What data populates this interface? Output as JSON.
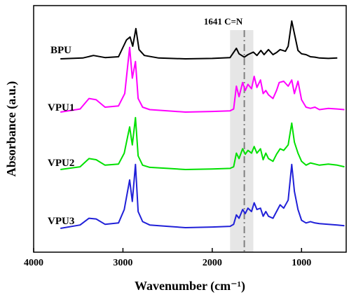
{
  "chart_data": {
    "type": "line",
    "xlabel": "Wavenumber (cm⁻¹)",
    "ylabel": "Absorbance (a.u.)",
    "xlim": [
      4000,
      500
    ],
    "x_reversed": true,
    "xticks": [
      4000,
      3000,
      2000,
      1000
    ],
    "grid": false,
    "legend": "inline labels left of each trace",
    "highlight_band": {
      "from": 1800,
      "to": 1540,
      "color": "#e6e6e6"
    },
    "annotation": {
      "label": "1641 C=N",
      "x": 1641,
      "line_style": "dash-dot",
      "color": "#808080"
    },
    "series": [
      {
        "name": "BPU",
        "color": "#000000",
        "points": [
          [
            3700,
            0.0
          ],
          [
            3450,
            0.02
          ],
          [
            3330,
            0.08
          ],
          [
            3200,
            0.03
          ],
          [
            3050,
            0.05
          ],
          [
            2960,
            0.45
          ],
          [
            2920,
            0.52
          ],
          [
            2890,
            0.3
          ],
          [
            2855,
            0.72
          ],
          [
            2820,
            0.22
          ],
          [
            2760,
            0.08
          ],
          [
            2600,
            0.02
          ],
          [
            2300,
            0.0
          ],
          [
            2000,
            0.01
          ],
          [
            1800,
            0.03
          ],
          [
            1730,
            0.25
          ],
          [
            1700,
            0.12
          ],
          [
            1640,
            0.04
          ],
          [
            1600,
            0.1
          ],
          [
            1540,
            0.16
          ],
          [
            1500,
            0.08
          ],
          [
            1455,
            0.2
          ],
          [
            1420,
            0.1
          ],
          [
            1370,
            0.22
          ],
          [
            1320,
            0.1
          ],
          [
            1280,
            0.15
          ],
          [
            1240,
            0.22
          ],
          [
            1180,
            0.18
          ],
          [
            1150,
            0.3
          ],
          [
            1110,
            0.9
          ],
          [
            1080,
            0.6
          ],
          [
            1040,
            0.2
          ],
          [
            1000,
            0.12
          ],
          [
            950,
            0.1
          ],
          [
            900,
            0.05
          ],
          [
            850,
            0.04
          ],
          [
            800,
            0.02
          ],
          [
            700,
            0.01
          ],
          [
            600,
            0.02
          ]
        ]
      },
      {
        "name": "VPU1",
        "color": "#ff00ff",
        "points": [
          [
            3700,
            0.0
          ],
          [
            3480,
            0.05
          ],
          [
            3380,
            0.22
          ],
          [
            3300,
            0.2
          ],
          [
            3200,
            0.08
          ],
          [
            3050,
            0.1
          ],
          [
            2980,
            0.3
          ],
          [
            2925,
            1.05
          ],
          [
            2895,
            0.55
          ],
          [
            2860,
            0.82
          ],
          [
            2830,
            0.22
          ],
          [
            2780,
            0.08
          ],
          [
            2700,
            0.04
          ],
          [
            2500,
            0.02
          ],
          [
            2300,
            0.0
          ],
          [
            2000,
            0.01
          ],
          [
            1800,
            0.02
          ],
          [
            1760,
            0.05
          ],
          [
            1730,
            0.42
          ],
          [
            1700,
            0.25
          ],
          [
            1660,
            0.48
          ],
          [
            1630,
            0.35
          ],
          [
            1600,
            0.45
          ],
          [
            1560,
            0.38
          ],
          [
            1530,
            0.58
          ],
          [
            1500,
            0.4
          ],
          [
            1460,
            0.52
          ],
          [
            1430,
            0.3
          ],
          [
            1400,
            0.35
          ],
          [
            1370,
            0.28
          ],
          [
            1320,
            0.22
          ],
          [
            1280,
            0.35
          ],
          [
            1250,
            0.48
          ],
          [
            1200,
            0.5
          ],
          [
            1150,
            0.42
          ],
          [
            1110,
            0.52
          ],
          [
            1080,
            0.3
          ],
          [
            1040,
            0.5
          ],
          [
            1000,
            0.2
          ],
          [
            950,
            0.08
          ],
          [
            900,
            0.06
          ],
          [
            850,
            0.08
          ],
          [
            800,
            0.04
          ],
          [
            700,
            0.06
          ],
          [
            600,
            0.05
          ],
          [
            520,
            0.04
          ]
        ]
      },
      {
        "name": "VPU2",
        "color": "#00e000",
        "points": [
          [
            3700,
            0.0
          ],
          [
            3480,
            0.05
          ],
          [
            3380,
            0.2
          ],
          [
            3300,
            0.18
          ],
          [
            3200,
            0.08
          ],
          [
            3050,
            0.1
          ],
          [
            2985,
            0.3
          ],
          [
            2925,
            0.78
          ],
          [
            2895,
            0.45
          ],
          [
            2860,
            0.95
          ],
          [
            2830,
            0.25
          ],
          [
            2780,
            0.08
          ],
          [
            2700,
            0.04
          ],
          [
            2500,
            0.02
          ],
          [
            2300,
            0.0
          ],
          [
            2000,
            0.01
          ],
          [
            1800,
            0.02
          ],
          [
            1760,
            0.05
          ],
          [
            1730,
            0.3
          ],
          [
            1700,
            0.2
          ],
          [
            1660,
            0.38
          ],
          [
            1630,
            0.28
          ],
          [
            1600,
            0.35
          ],
          [
            1560,
            0.3
          ],
          [
            1530,
            0.42
          ],
          [
            1500,
            0.3
          ],
          [
            1460,
            0.38
          ],
          [
            1430,
            0.18
          ],
          [
            1400,
            0.3
          ],
          [
            1370,
            0.2
          ],
          [
            1320,
            0.15
          ],
          [
            1280,
            0.28
          ],
          [
            1240,
            0.38
          ],
          [
            1200,
            0.35
          ],
          [
            1150,
            0.45
          ],
          [
            1110,
            0.85
          ],
          [
            1080,
            0.5
          ],
          [
            1040,
            0.3
          ],
          [
            1000,
            0.15
          ],
          [
            950,
            0.08
          ],
          [
            900,
            0.12
          ],
          [
            850,
            0.1
          ],
          [
            800,
            0.08
          ],
          [
            700,
            0.1
          ],
          [
            600,
            0.08
          ],
          [
            520,
            0.05
          ]
        ]
      },
      {
        "name": "VPU3",
        "color": "#2020d8",
        "points": [
          [
            3700,
            0.0
          ],
          [
            3480,
            0.05
          ],
          [
            3380,
            0.15
          ],
          [
            3300,
            0.14
          ],
          [
            3200,
            0.06
          ],
          [
            3050,
            0.08
          ],
          [
            2985,
            0.28
          ],
          [
            2925,
            0.72
          ],
          [
            2895,
            0.4
          ],
          [
            2860,
            0.95
          ],
          [
            2830,
            0.25
          ],
          [
            2780,
            0.1
          ],
          [
            2700,
            0.05
          ],
          [
            2500,
            0.03
          ],
          [
            2300,
            0.01
          ],
          [
            2000,
            0.02
          ],
          [
            1800,
            0.03
          ],
          [
            1760,
            0.06
          ],
          [
            1730,
            0.2
          ],
          [
            1700,
            0.15
          ],
          [
            1660,
            0.28
          ],
          [
            1630,
            0.22
          ],
          [
            1600,
            0.3
          ],
          [
            1560,
            0.25
          ],
          [
            1530,
            0.38
          ],
          [
            1500,
            0.28
          ],
          [
            1460,
            0.3
          ],
          [
            1430,
            0.18
          ],
          [
            1400,
            0.25
          ],
          [
            1370,
            0.18
          ],
          [
            1320,
            0.15
          ],
          [
            1280,
            0.25
          ],
          [
            1240,
            0.35
          ],
          [
            1200,
            0.3
          ],
          [
            1150,
            0.42
          ],
          [
            1110,
            0.95
          ],
          [
            1080,
            0.55
          ],
          [
            1040,
            0.28
          ],
          [
            1000,
            0.12
          ],
          [
            950,
            0.08
          ],
          [
            900,
            0.1
          ],
          [
            850,
            0.08
          ],
          [
            800,
            0.07
          ],
          [
            700,
            0.06
          ],
          [
            600,
            0.05
          ],
          [
            520,
            0.04
          ]
        ]
      }
    ]
  }
}
